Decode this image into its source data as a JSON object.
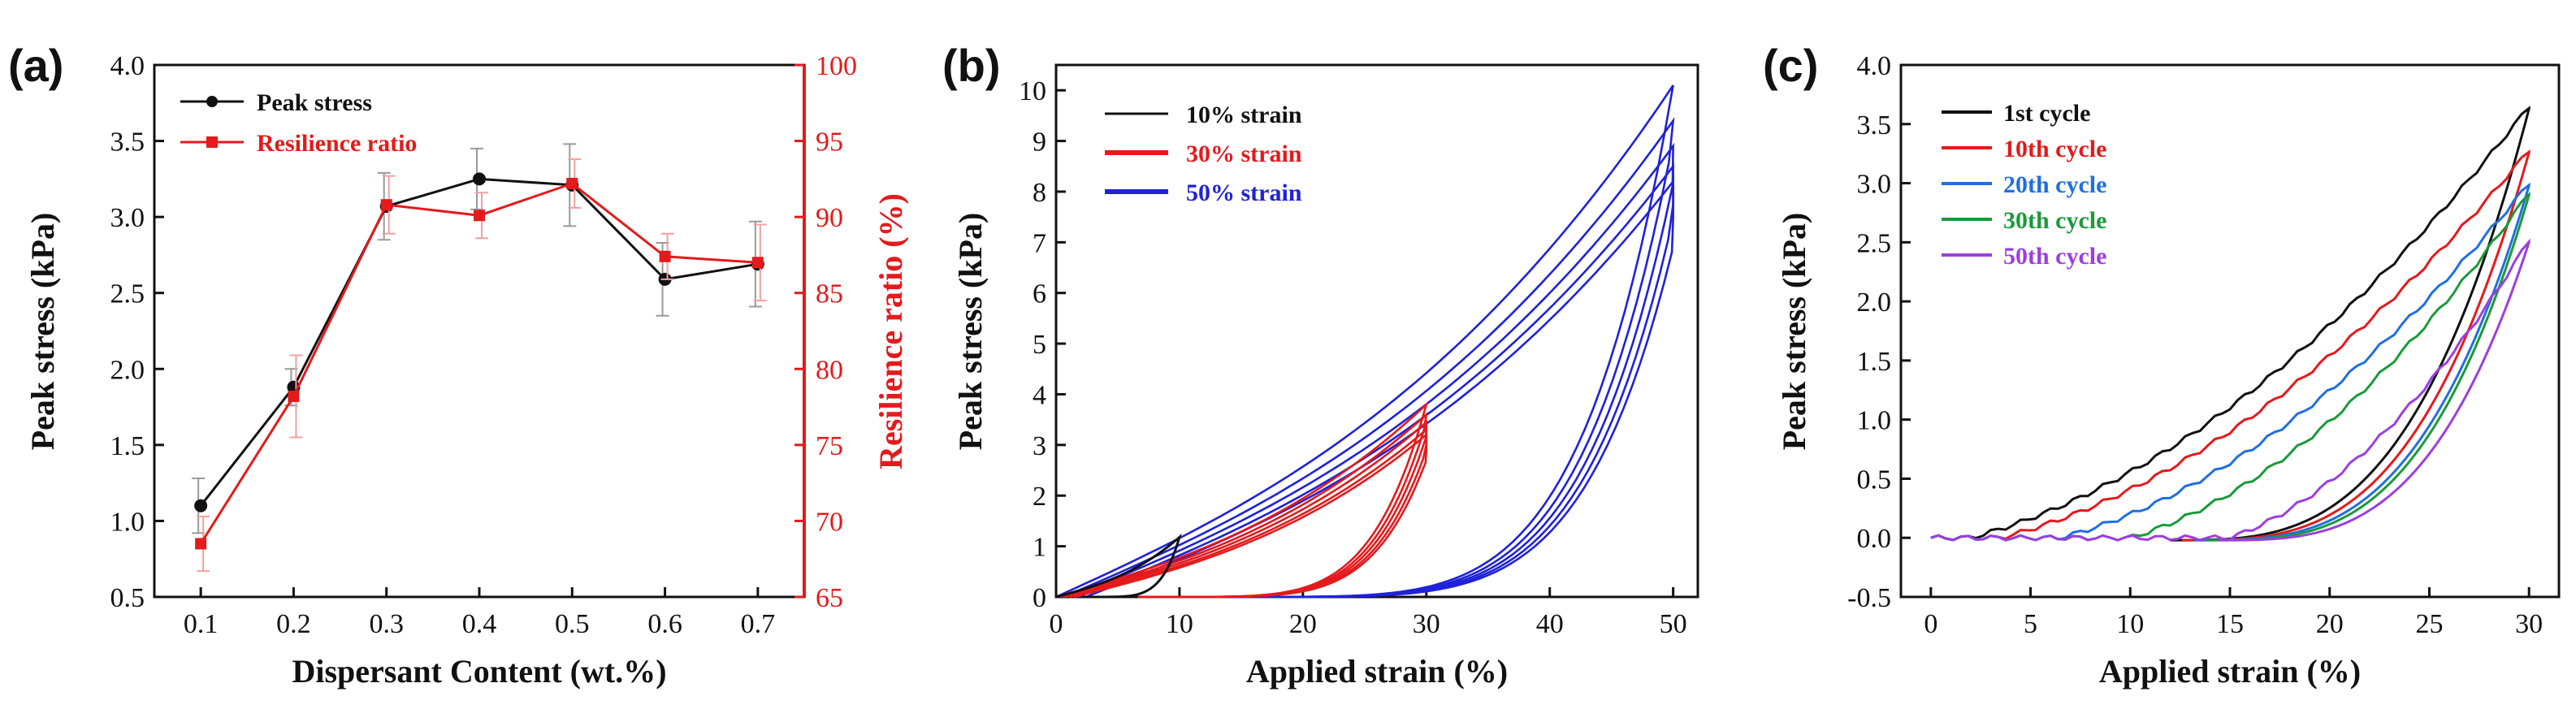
{
  "panels": [
    {
      "label": "(a)",
      "chart_data": {
        "type": "line",
        "xlabel": "Dispersant Content (wt.%)",
        "ylabel": "Peak stress (kPa)",
        "y2label": "Resilience ratio (%)",
        "x": [
          0.1,
          0.2,
          0.3,
          0.4,
          0.5,
          0.6,
          0.7
        ],
        "xlim": [
          0.05,
          0.75
        ],
        "ylim": [
          0.5,
          4.0
        ],
        "y2lim": [
          65,
          100
        ],
        "xticks": [
          0.1,
          0.2,
          0.3,
          0.4,
          0.5,
          0.6,
          0.7
        ],
        "yticks": [
          0.5,
          1.0,
          1.5,
          2.0,
          2.5,
          3.0,
          3.5,
          4.0
        ],
        "y2ticks": [
          65,
          70,
          75,
          80,
          85,
          90,
          95,
          100
        ],
        "legend_position": "top-left",
        "series": [
          {
            "name": "Peak stress",
            "axis": "left",
            "color": "#111111",
            "marker": "circle",
            "values": [
              1.1,
              1.88,
              3.07,
              3.25,
              3.21,
              2.59,
              2.69
            ],
            "errors": [
              0.18,
              0.12,
              0.22,
              0.2,
              0.27,
              0.24,
              0.28
            ]
          },
          {
            "name": "Resilience ratio",
            "axis": "right",
            "color": "#e41a1c",
            "marker": "square",
            "values": [
              68.5,
              78.2,
              90.8,
              90.1,
              92.2,
              87.4,
              87.0
            ],
            "errors": [
              1.8,
              2.7,
              1.9,
              1.5,
              1.6,
              1.5,
              2.5
            ]
          }
        ]
      }
    },
    {
      "label": "(b)",
      "chart_data": {
        "type": "line",
        "xlabel": "Applied strain (%)",
        "ylabel": "Peak stress (kPa)",
        "xlim": [
          0,
          52
        ],
        "ylim": [
          0,
          10.5
        ],
        "xticks": [
          0,
          10,
          20,
          30,
          40,
          50
        ],
        "yticks": [
          0,
          1,
          2,
          3,
          4,
          5,
          6,
          7,
          8,
          9,
          10
        ],
        "legend_position": "top-left",
        "series": [
          {
            "name": "10% strain",
            "color": "#111111",
            "max_strain": 10,
            "peaks": [
              1.18
            ]
          },
          {
            "name": "30% strain",
            "color": "#e41a1c",
            "max_strain": 30,
            "peaks": [
              3.8,
              3.6,
              3.45,
              3.3,
              3.2
            ]
          },
          {
            "name": "50% strain",
            "color": "#1f22d8",
            "max_strain": 50,
            "peaks": [
              10.1,
              9.4,
              8.9,
              8.5,
              8.2
            ]
          }
        ]
      }
    },
    {
      "label": "(c)",
      "chart_data": {
        "type": "line",
        "xlabel": "Applied strain (%)",
        "ylabel": "Peak stress (kPa)",
        "xlim": [
          -1.5,
          31.5
        ],
        "ylim": [
          -0.5,
          4.0
        ],
        "xticks": [
          0,
          5,
          10,
          15,
          20,
          25,
          30
        ],
        "yticks": [
          -0.5,
          0.0,
          0.5,
          1.0,
          1.5,
          2.0,
          2.5,
          3.0,
          3.5,
          4.0
        ],
        "legend_position": "top-left",
        "series": [
          {
            "name": "1st cycle",
            "color": "#111111",
            "peak": 3.65,
            "onset": 2.0
          },
          {
            "name": "10th cycle",
            "color": "#e41a1c",
            "peak": 3.28,
            "onset": 3.5
          },
          {
            "name": "20th cycle",
            "color": "#1f6fe0",
            "peak": 3.0,
            "onset": 6.5
          },
          {
            "name": "30th cycle",
            "color": "#1a9a3a",
            "peak": 2.92,
            "onset": 10.0
          },
          {
            "name": "50th cycle",
            "color": "#9b3fe0",
            "peak": 2.52,
            "onset": 15.0
          }
        ]
      }
    }
  ]
}
